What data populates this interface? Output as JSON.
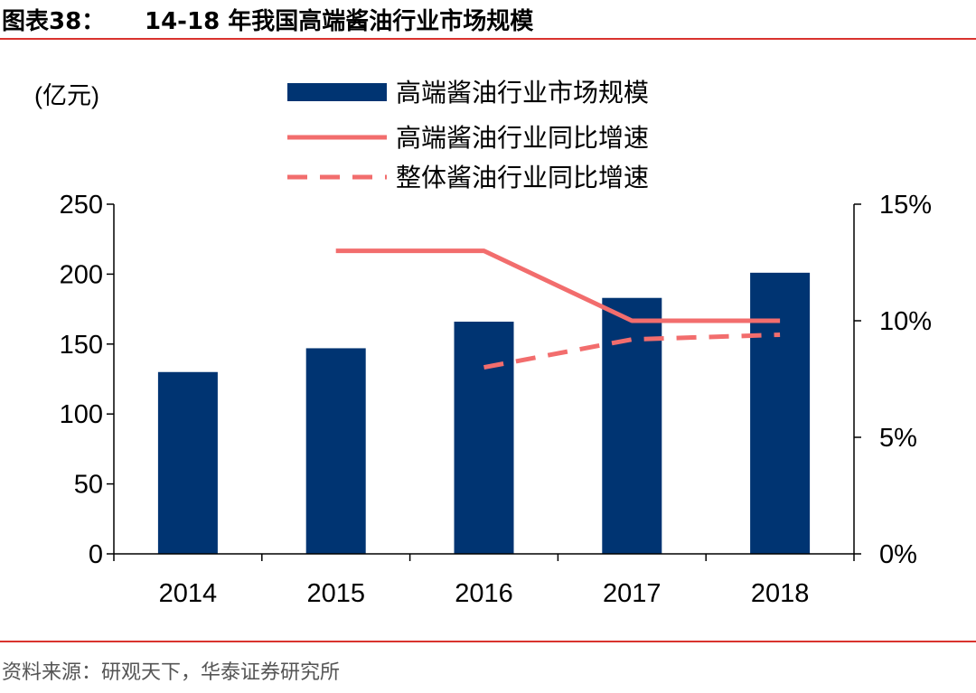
{
  "header": {
    "label": "图表38：",
    "title": "14-18 年我国高端酱油行业市场规模"
  },
  "colors": {
    "accent_rule": "#d9332e",
    "bar": "#003472",
    "line": "#f26d6d"
  },
  "chart_data": {
    "type": "bar",
    "title": "14-18 年我国高端酱油行业市场规模",
    "unit_label": "(亿元)",
    "categories": [
      "2014",
      "2015",
      "2016",
      "2017",
      "2018"
    ],
    "y_left": {
      "min": 0,
      "max": 250,
      "ticks": [
        0,
        50,
        100,
        150,
        200,
        250
      ],
      "tick_labels": [
        "0",
        "50",
        "100",
        "150",
        "200",
        "250"
      ]
    },
    "y_right": {
      "min": 0,
      "max": 15,
      "ticks": [
        0,
        5,
        10,
        15
      ],
      "tick_labels": [
        "0%",
        "5%",
        "10%",
        "15%"
      ]
    },
    "series": [
      {
        "name": "高端酱油行业市场规模",
        "kind": "bar",
        "axis": "left",
        "values": [
          130,
          147,
          166,
          183,
          201
        ]
      },
      {
        "name": "高端酱油行业同比增速",
        "kind": "line",
        "axis": "right",
        "dashed": false,
        "values": [
          null,
          13.0,
          13.0,
          10.0,
          10.0
        ]
      },
      {
        "name": "整体酱油行业同比增速",
        "kind": "line",
        "axis": "right",
        "dashed": true,
        "values": [
          null,
          null,
          8.0,
          9.2,
          9.4
        ]
      }
    ],
    "legend_position": "top"
  },
  "source": {
    "text": "资料来源：研观天下，华泰证券研究所"
  }
}
